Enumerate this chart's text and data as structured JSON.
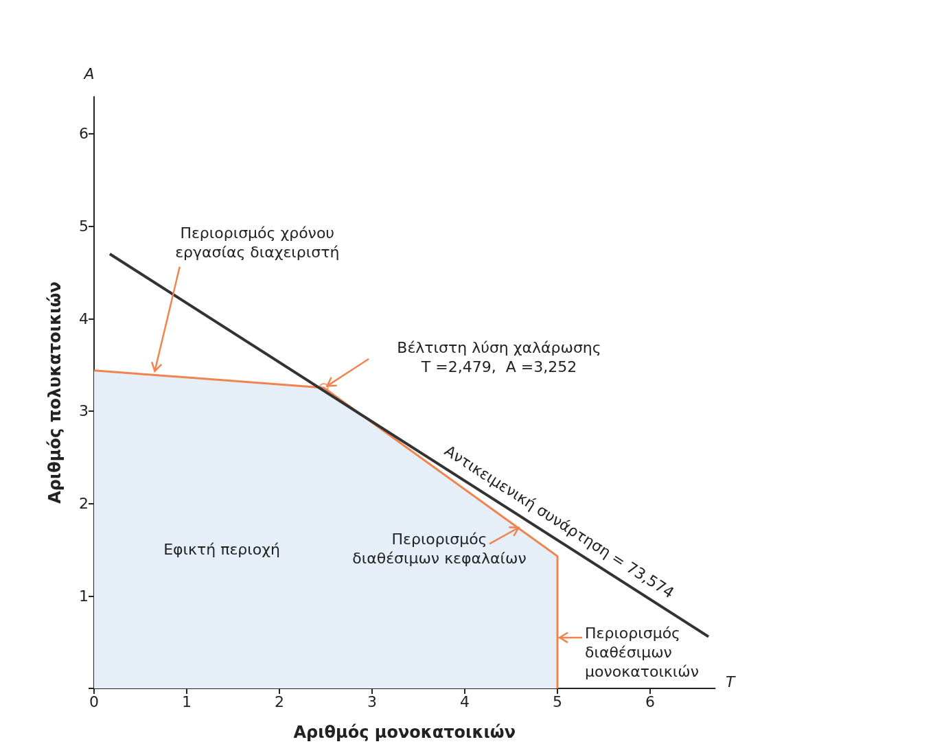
{
  "chart_data": {
    "type": "line",
    "xlabel": "Αριθμός μονοκατοικιών",
    "ylabel": "Αριθμός πολυκατοικιών",
    "xlim": [
      0,
      6.7
    ],
    "ylim": [
      0,
      6.4
    ],
    "xticks": [
      0,
      1,
      2,
      3,
      4,
      5,
      6
    ],
    "yticks": [
      {
        "value": 0,
        "label": null
      },
      1,
      2,
      3,
      4,
      5,
      6
    ],
    "grid": false,
    "series": [
      {
        "type": "area",
        "color": "#f0834e",
        "x": [
          0,
          2.479,
          5,
          5
        ],
        "values": [
          3.44,
          3.252,
          1.43,
          0
        ],
        "marker": "none"
      },
      {
        "color": "#333333",
        "x": [
          0.17,
          6.63
        ],
        "values": [
          4.7,
          0.56
        ],
        "marker": "none"
      },
      {
        "type": "scatter",
        "color": "#f0834e",
        "x": [
          2.479
        ],
        "values": [
          3.252
        ],
        "marker": "circle"
      }
    ],
    "annotations": [
      {
        "text": "Περιορισμός χρόνου\nεργασίας διαχειριστή",
        "x": 0.65,
        "y": 3.41
      },
      "Βέλτιστη λύση χαλάρωσης\nT =2,479,  A =3,252",
      {
        "text": "Αντικειμενική συνάρτηση = 73,574",
        "x": 4.99,
        "y": 1.61
      },
      {
        "text": "Περιορισμός\nδιαθέσιμων κεφαλαίων",
        "x": 4.6,
        "y": 1.75
      },
      "Εφικτή περιοχή",
      {
        "text": "Περιορισμός\nδιαθέσιμων\nμονοκατοικιών",
        "x": 5,
        "y": 0.55
      },
      "A",
      "T"
    ]
  }
}
